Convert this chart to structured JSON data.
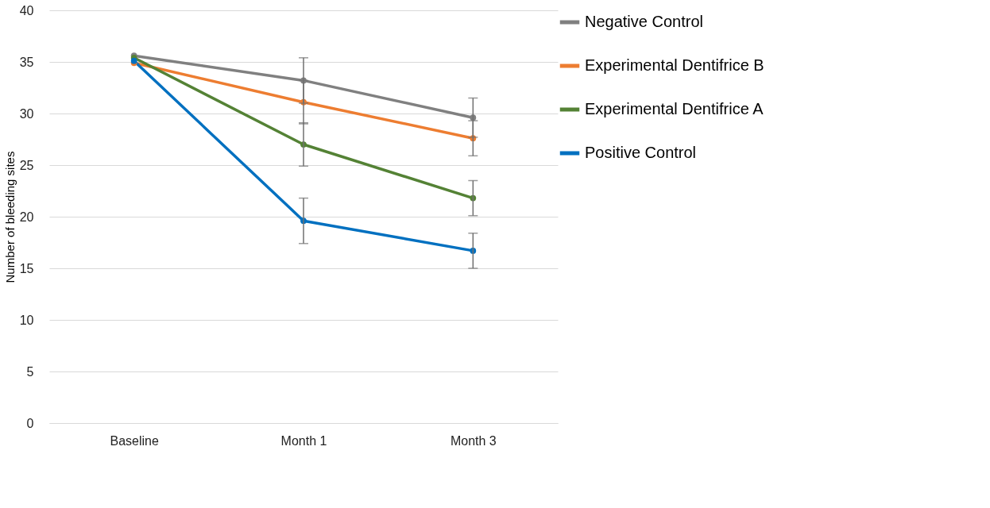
{
  "chart_data": {
    "type": "line",
    "ylabel": "Number of bleeding sites",
    "categories": [
      "Baseline",
      "Month 1",
      "Month 3"
    ],
    "ylim": [
      0,
      40
    ],
    "yticks": [
      0,
      5,
      10,
      15,
      20,
      25,
      30,
      35,
      40
    ],
    "grid": "y",
    "legend": "right",
    "marker": "circle",
    "line_style": "solid",
    "series": [
      {
        "name": "Negative Control",
        "color": "#808080",
        "values": [
          35.6,
          33.2,
          29.6
        ],
        "errors": [
          null,
          2.2,
          1.9
        ]
      },
      {
        "name": "Experimental Dentifrice B",
        "color": "#ed7d31",
        "values": [
          34.9,
          31.1,
          27.6
        ],
        "errors": [
          null,
          2.1,
          1.7
        ]
      },
      {
        "name": "Experimental Dentifrice A",
        "color": "#548235",
        "values": [
          35.4,
          27.0,
          21.8
        ],
        "errors": [
          null,
          2.1,
          1.7
        ]
      },
      {
        "name": "Positive Control",
        "color": "#0070c0",
        "values": [
          35.1,
          19.6,
          16.7
        ],
        "errors": [
          null,
          2.2,
          1.7
        ]
      }
    ]
  }
}
